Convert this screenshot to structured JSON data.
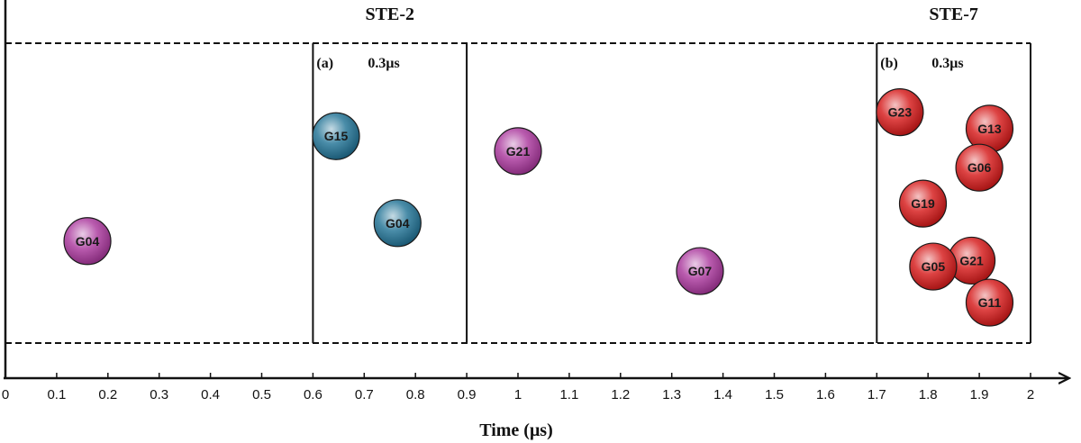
{
  "chart_data": {
    "type": "scatter",
    "title": "",
    "xlabel": "Time (μs)",
    "ylabel": "",
    "xlim": [
      0,
      2
    ],
    "ylim": [
      0,
      1
    ],
    "x_ticks": [
      "0",
      "0.1",
      "0.2",
      "0.3",
      "0.4",
      "0.5",
      "0.6",
      "0.7",
      "0.8",
      "0.9",
      "1",
      "1.1",
      "1.2",
      "1.3",
      "1.4",
      "1.5",
      "1.6",
      "1.7",
      "1.8",
      "1.9",
      "2"
    ],
    "regions": [
      {
        "id": "a",
        "label": "(a)",
        "duration_label": "0.3μs",
        "group_title": "STE-2",
        "x_start": 0.6,
        "x_end": 0.9
      },
      {
        "id": "b",
        "label": "(b)",
        "duration_label": "0.3μs",
        "group_title": "STE-7",
        "x_start": 1.7,
        "x_end": 2.0
      }
    ],
    "dividers": [
      0.6,
      0.9,
      1.7,
      2.0
    ],
    "series": [
      {
        "name": "magenta",
        "color": "#a8329a",
        "points": [
          {
            "label": "G04",
            "x": 0.16,
            "y": 0.34
          },
          {
            "label": "G21",
            "x": 1.0,
            "y": 0.64
          },
          {
            "label": "G07",
            "x": 1.355,
            "y": 0.24
          }
        ]
      },
      {
        "name": "blue",
        "color": "#1c6f92",
        "points": [
          {
            "label": "G15",
            "x": 0.645,
            "y": 0.69
          },
          {
            "label": "G04",
            "x": 0.765,
            "y": 0.4
          }
        ]
      },
      {
        "name": "red",
        "color": "#d41414",
        "points": [
          {
            "label": "G23",
            "x": 1.745,
            "y": 0.77
          },
          {
            "label": "G13",
            "x": 1.92,
            "y": 0.715
          },
          {
            "label": "G06",
            "x": 1.9,
            "y": 0.585
          },
          {
            "label": "G19",
            "x": 1.79,
            "y": 0.465
          },
          {
            "label": "G21",
            "x": 1.885,
            "y": 0.275
          },
          {
            "label": "G05",
            "x": 1.81,
            "y": 0.255
          },
          {
            "label": "G11",
            "x": 1.92,
            "y": 0.135
          }
        ]
      }
    ]
  }
}
